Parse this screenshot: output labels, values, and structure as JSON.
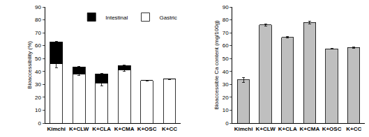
{
  "chart_data": [
    {
      "type": "bar",
      "stacked": true,
      "legend": "top right",
      "ylabel": "Bioaccessibility (%)",
      "categories": [
        "Kimchi",
        "K+CLW",
        "K+CLA",
        "K+CMA",
        "K+OSC",
        "K+CC"
      ],
      "series": [
        {
          "name": "Gastric",
          "color": "#ffffff",
          "values": [
            46,
            38,
            31,
            41,
            33,
            34
          ],
          "errors": [
            3,
            1,
            2,
            1,
            0.3,
            0.3
          ]
        },
        {
          "name": "Intestinal",
          "color": "#000000",
          "values": [
            17,
            5.5,
            7,
            3.5,
            0,
            0
          ],
          "errors": [
            0.5,
            0.5,
            0.5,
            0.5,
            0,
            0
          ]
        }
      ],
      "ylim": [
        0,
        90
      ],
      "yticks": [
        0,
        10,
        20,
        30,
        40,
        50,
        60,
        70,
        80,
        90
      ]
    },
    {
      "type": "bar",
      "ylabel": "Bioaccessible Ca content (mg/100g)",
      "categories": [
        "Kimchi",
        "K+CLW",
        "K+CLA",
        "K+CMA",
        "K+OSC",
        "K+CC"
      ],
      "series": [
        {
          "color": "#bfbfbf",
          "values": [
            33.5,
            76,
            66.5,
            78,
            57.5,
            58.5
          ],
          "errors": [
            2,
            1,
            0.6,
            1,
            0.3,
            0.3
          ]
        }
      ],
      "ylim": [
        0,
        90
      ],
      "yticks": [
        0,
        10,
        20,
        30,
        40,
        50,
        60,
        70,
        80,
        90
      ]
    }
  ]
}
